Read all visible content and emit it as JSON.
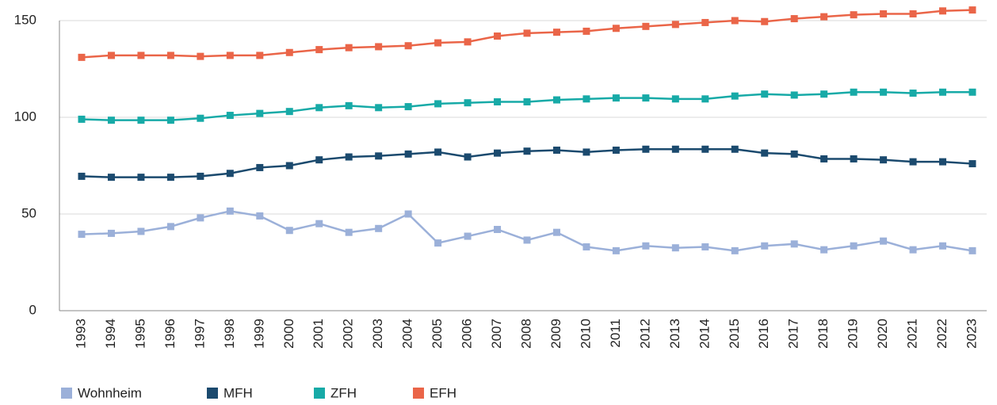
{
  "chart_data": {
    "type": "line",
    "categories": [
      "1993",
      "1994",
      "1995",
      "1996",
      "1997",
      "1998",
      "1999",
      "2000",
      "2001",
      "2002",
      "2003",
      "2004",
      "2005",
      "2006",
      "2007",
      "2008",
      "2009",
      "2010",
      "2011",
      "2012",
      "2013",
      "2014",
      "2015",
      "2016",
      "2017",
      "2018",
      "2019",
      "2020",
      "2021",
      "2022",
      "2023"
    ],
    "series": [
      {
        "name": "Wohnheim",
        "color": "#9bb0d9",
        "values": [
          39.5,
          40,
          41,
          43.5,
          48,
          51.5,
          49,
          41.5,
          45,
          40.5,
          42.5,
          50,
          35,
          38.5,
          42,
          36.5,
          40.5,
          33,
          31,
          33.5,
          32.5,
          33,
          31,
          33.5,
          34.5,
          31.5,
          33.5,
          36,
          31.5,
          33.5,
          31
        ]
      },
      {
        "name": "MFH",
        "color": "#1b4a6e",
        "values": [
          69.5,
          69,
          69,
          69,
          69.5,
          71,
          74,
          75,
          78,
          79.5,
          80,
          81,
          82,
          79.5,
          81.5,
          82.5,
          83,
          82,
          83,
          83.5,
          83.5,
          83.5,
          83.5,
          81.5,
          81,
          78.5,
          78.5,
          78,
          77,
          77,
          76
        ]
      },
      {
        "name": "ZFH",
        "color": "#17aaa7",
        "values": [
          99,
          98.5,
          98.5,
          98.5,
          99.5,
          101,
          102,
          103,
          105,
          106,
          105,
          105.5,
          107,
          107.5,
          108,
          108,
          109,
          109.5,
          110,
          110,
          109.5,
          109.5,
          111,
          112,
          111.5,
          112,
          113,
          113,
          112.5,
          113,
          113
        ]
      },
      {
        "name": "EFH",
        "color": "#ea6548",
        "values": [
          131,
          132,
          132,
          132,
          131.5,
          132,
          132,
          133.5,
          135,
          136,
          136.5,
          137,
          138.5,
          139,
          142,
          143.5,
          144,
          144.5,
          146,
          147,
          148,
          149,
          150,
          149.5,
          151,
          152,
          153,
          153.5,
          153.5,
          155,
          155.5
        ]
      }
    ],
    "ylim": [
      0,
      150
    ],
    "yticks": [
      0,
      50,
      100,
      150
    ],
    "grid": true
  }
}
